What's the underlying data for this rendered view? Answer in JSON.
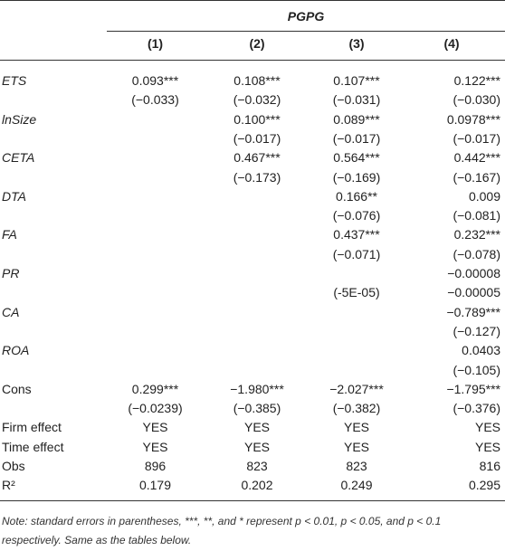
{
  "table": {
    "group_header": "PGPG",
    "columns": [
      "(1)",
      "(2)",
      "(3)",
      "(4)"
    ],
    "rows": [
      {
        "label": "ETS",
        "cells": [
          "0.093***",
          "0.108***",
          "0.107***",
          "0.122***"
        ]
      },
      {
        "label": null,
        "cells": [
          "(−0.033)",
          "(−0.032)",
          "(−0.031)",
          "(−0.030)"
        ]
      },
      {
        "label": "lnSize",
        "cells": [
          null,
          "0.100***",
          "0.089***",
          "0.0978***"
        ]
      },
      {
        "label": null,
        "cells": [
          null,
          "(−0.017)",
          "(−0.017)",
          "(−0.017)"
        ]
      },
      {
        "label": "CETA",
        "cells": [
          null,
          "0.467***",
          "0.564***",
          "0.442***"
        ]
      },
      {
        "label": null,
        "cells": [
          null,
          "(−0.173)",
          "(−0.169)",
          "(−0.167)"
        ]
      },
      {
        "label": "DTA",
        "cells": [
          null,
          null,
          "0.166**",
          "0.009"
        ]
      },
      {
        "label": null,
        "cells": [
          null,
          null,
          "(−0.076)",
          "(−0.081)"
        ]
      },
      {
        "label": "FA",
        "cells": [
          null,
          null,
          "0.437***",
          "0.232***"
        ]
      },
      {
        "label": null,
        "cells": [
          null,
          null,
          "(−0.071)",
          "(−0.078)"
        ]
      },
      {
        "label": "PR",
        "cells": [
          null,
          null,
          null,
          "−0.00008"
        ]
      },
      {
        "label": null,
        "cells": [
          null,
          null,
          "(-5E-05)",
          "−0.00005"
        ]
      },
      {
        "label": "CA",
        "cells": [
          null,
          null,
          null,
          "−0.789***"
        ]
      },
      {
        "label": null,
        "cells": [
          null,
          null,
          null,
          "(−0.127)"
        ]
      },
      {
        "label": "ROA",
        "cells": [
          null,
          null,
          null,
          "0.0403"
        ]
      },
      {
        "label": null,
        "cells": [
          null,
          null,
          null,
          "(−0.105)"
        ]
      },
      {
        "label": "Cons",
        "cells": [
          "0.299***",
          "−1.980***",
          "−2.027***",
          "−1.795***"
        ]
      },
      {
        "label": null,
        "cells": [
          "(−0.0239)",
          "(−0.385)",
          "(−0.382)",
          "(−0.376)"
        ]
      },
      {
        "label": "Firm effect",
        "cells": [
          "YES",
          "YES",
          "YES",
          "YES"
        ]
      },
      {
        "label": "Time effect",
        "cells": [
          "YES",
          "YES",
          "YES",
          "YES"
        ]
      },
      {
        "label": "Obs",
        "cells": [
          "896",
          "823",
          "823",
          "816"
        ]
      },
      {
        "label": "R²",
        "cells": [
          "0.179",
          "0.202",
          "0.249",
          "0.295"
        ]
      }
    ],
    "note": "Note: standard errors in parentheses, ***, **, and * represent p < 0.01, p < 0.05, and p < 0.1 respectively. Same as the tables below."
  }
}
